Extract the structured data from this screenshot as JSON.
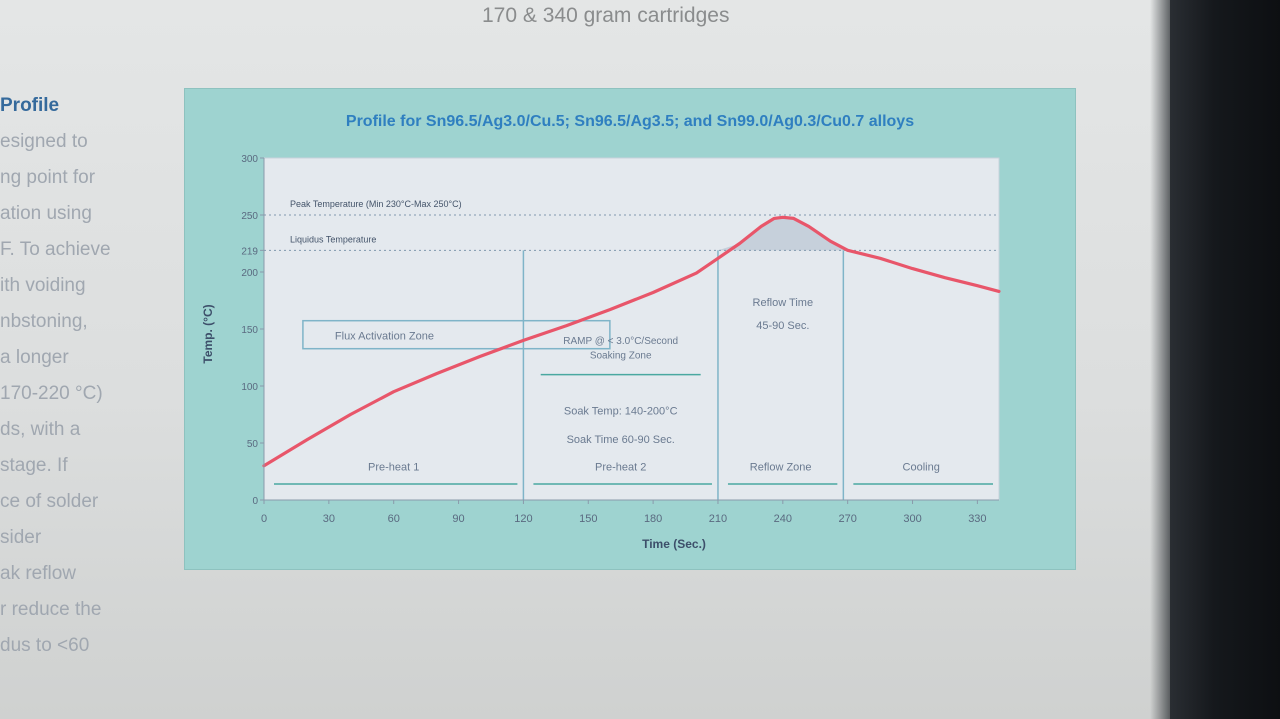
{
  "page": {
    "heading": "170 & 340 gram cartridges",
    "side_title": "Profile",
    "side_lines": [
      "esigned to",
      "ng point for",
      "ation using",
      "F. To achieve",
      "ith voiding",
      "nbstoning,",
      "a longer",
      "170-220 °C)",
      "ds, with a",
      "stage. If",
      "ce of solder",
      "sider",
      "ak reflow",
      "r reduce the",
      "dus to <60"
    ]
  },
  "colors": {
    "panel": "#9ed3d0",
    "plot_bg": "#e4e9ee",
    "curve": "#e8566a",
    "title": "#2f7fc0",
    "zone_line": "#7fb4c8",
    "peak_fill": "#b9c4d3"
  },
  "chart_data": {
    "type": "line",
    "title": "Profile for Sn96.5/Ag3.0/Cu.5; Sn96.5/Ag3.5; and Sn99.0/Ag0.3/Cu0.7 alloys",
    "xlabel": "Time (Sec.)",
    "ylabel": "Temp. (°C)",
    "xlim": [
      0,
      340
    ],
    "ylim": [
      0,
      300
    ],
    "x_ticks": [
      0,
      30,
      60,
      90,
      120,
      150,
      180,
      210,
      240,
      270,
      300,
      330
    ],
    "y_ticks": [
      0,
      50,
      100,
      150,
      200,
      219,
      250,
      300
    ],
    "grid": false,
    "series": [
      {
        "name": "",
        "x": [
          0,
          20,
          40,
          60,
          80,
          100,
          120,
          140,
          160,
          180,
          200,
          210,
          220,
          230,
          236,
          240,
          245,
          252,
          262,
          270,
          285,
          300,
          315,
          330,
          340
        ],
        "y": [
          30,
          53,
          75,
          95,
          111,
          126,
          140,
          153,
          167,
          182,
          199,
          212,
          225,
          240,
          247,
          248,
          247,
          240,
          227,
          219,
          212,
          203,
          195,
          188,
          183
        ]
      }
    ],
    "reference_lines": [
      {
        "label": "Peak Temperature (Min 230°C-Max 250°C)",
        "y": 250
      },
      {
        "label": "Liquidus Temperature",
        "y": 219
      }
    ],
    "zone_boundaries": [
      120,
      210,
      268
    ],
    "annotations": {
      "flux_zone": "Flux Activation Zone",
      "ramp": "RAMP @ < 3.0°C/Second",
      "soaking": "Soaking Zone",
      "soak_temp": "Soak Temp: 140-200°C",
      "soak_time": "Soak Time 60-90 Sec.",
      "reflow_time": "Reflow Time",
      "reflow_sec": "45-90 Sec."
    },
    "zones": [
      {
        "label": "Pre-heat 1",
        "from": 0,
        "to": 120
      },
      {
        "label": "Pre-heat 2",
        "from": 120,
        "to": 210
      },
      {
        "label": "Reflow Zone",
        "from": 210,
        "to": 268
      },
      {
        "label": "Cooling",
        "from": 268,
        "to": 340
      }
    ]
  }
}
